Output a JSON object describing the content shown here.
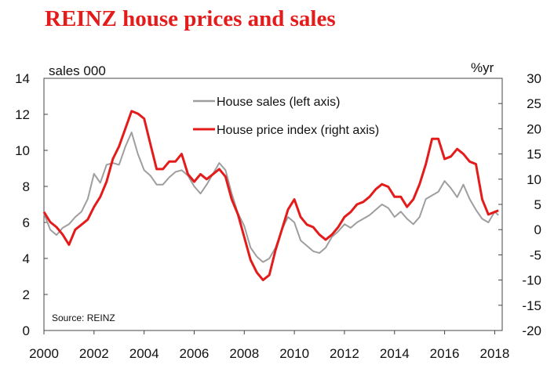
{
  "chart_data": {
    "type": "line",
    "title": "REINZ house prices and sales",
    "left_axis": {
      "unit_label": "sales 000",
      "ylim": [
        0,
        14
      ],
      "ticks": [
        0,
        2,
        4,
        6,
        8,
        10,
        12,
        14
      ]
    },
    "right_axis": {
      "unit_label": "%yr",
      "ylim": [
        -20,
        30
      ],
      "ticks": [
        -20,
        -15,
        -10,
        -5,
        0,
        5,
        10,
        15,
        20,
        25,
        30
      ]
    },
    "x_axis": {
      "xlim": [
        2000,
        2018.3
      ],
      "ticks": [
        2000,
        2002,
        2004,
        2006,
        2008,
        2010,
        2012,
        2014,
        2016,
        2018
      ]
    },
    "legend": {
      "placement": "top-center"
    },
    "source": "Source: REINZ",
    "series": [
      {
        "name": "House sales (left axis)",
        "axis": "left",
        "color": "#9e9e9e",
        "x": [
          2000.0,
          2000.25,
          2000.5,
          2000.75,
          2001.0,
          2001.25,
          2001.5,
          2001.75,
          2002.0,
          2002.25,
          2002.5,
          2002.75,
          2003.0,
          2003.25,
          2003.5,
          2003.75,
          2004.0,
          2004.25,
          2004.5,
          2004.75,
          2005.0,
          2005.25,
          2005.5,
          2005.75,
          2006.0,
          2006.25,
          2006.5,
          2006.75,
          2007.0,
          2007.25,
          2007.5,
          2007.75,
          2008.0,
          2008.25,
          2008.5,
          2008.75,
          2009.0,
          2009.25,
          2009.5,
          2009.75,
          2010.0,
          2010.25,
          2010.5,
          2010.75,
          2011.0,
          2011.25,
          2011.5,
          2011.75,
          2012.0,
          2012.25,
          2012.5,
          2012.75,
          2013.0,
          2013.25,
          2013.5,
          2013.75,
          2014.0,
          2014.25,
          2014.5,
          2014.75,
          2015.0,
          2015.25,
          2015.5,
          2015.75,
          2016.0,
          2016.25,
          2016.5,
          2016.75,
          2017.0,
          2017.25,
          2017.5,
          2017.75,
          2018.0,
          2018.15
        ],
        "values": [
          6.5,
          5.6,
          5.3,
          5.7,
          5.9,
          6.3,
          6.6,
          7.3,
          8.7,
          8.2,
          9.2,
          9.3,
          9.2,
          10.2,
          11.0,
          9.8,
          8.9,
          8.6,
          8.1,
          8.1,
          8.5,
          8.8,
          8.9,
          8.6,
          8.0,
          7.6,
          8.1,
          8.7,
          9.3,
          8.9,
          7.6,
          6.5,
          5.8,
          4.6,
          4.1,
          3.8,
          4.0,
          4.6,
          5.6,
          6.3,
          6.0,
          5.0,
          4.7,
          4.4,
          4.3,
          4.6,
          5.2,
          5.5,
          5.9,
          5.7,
          6.0,
          6.2,
          6.4,
          6.7,
          7.0,
          6.8,
          6.3,
          6.6,
          6.2,
          5.9,
          6.3,
          7.3,
          7.5,
          7.7,
          8.3,
          7.9,
          7.4,
          8.1,
          7.3,
          6.7,
          6.2,
          6.0,
          6.6,
          6.4
        ]
      },
      {
        "name": "House price index (right axis)",
        "axis": "right",
        "color": "#e31b1b",
        "x": [
          2000.0,
          2000.25,
          2000.5,
          2000.75,
          2001.0,
          2001.25,
          2001.5,
          2001.75,
          2002.0,
          2002.25,
          2002.5,
          2002.75,
          2003.0,
          2003.25,
          2003.5,
          2003.75,
          2004.0,
          2004.25,
          2004.5,
          2004.75,
          2005.0,
          2005.25,
          2005.5,
          2005.75,
          2006.0,
          2006.25,
          2006.5,
          2006.75,
          2007.0,
          2007.25,
          2007.5,
          2007.75,
          2008.0,
          2008.25,
          2008.5,
          2008.75,
          2009.0,
          2009.25,
          2009.5,
          2009.75,
          2010.0,
          2010.25,
          2010.5,
          2010.75,
          2011.0,
          2011.25,
          2011.5,
          2011.75,
          2012.0,
          2012.25,
          2012.5,
          2012.75,
          2013.0,
          2013.25,
          2013.5,
          2013.75,
          2014.0,
          2014.25,
          2014.5,
          2014.75,
          2015.0,
          2015.25,
          2015.5,
          2015.75,
          2016.0,
          2016.25,
          2016.5,
          2016.75,
          2017.0,
          2017.25,
          2017.5,
          2017.75,
          2018.0,
          2018.15
        ],
        "values": [
          3.5,
          1.5,
          0.5,
          -1.0,
          -3.0,
          0.0,
          1.0,
          2.0,
          4.5,
          6.5,
          9.5,
          14.0,
          16.5,
          20.0,
          23.5,
          23.0,
          22.0,
          17.0,
          12.0,
          12.0,
          13.5,
          13.5,
          15.0,
          11.0,
          9.5,
          11.0,
          10.0,
          11.0,
          12.0,
          10.5,
          6.0,
          3.0,
          -1.5,
          -6.0,
          -8.5,
          -10.0,
          -9.0,
          -4.0,
          0.0,
          4.0,
          6.0,
          2.5,
          1.0,
          0.5,
          -1.0,
          -2.0,
          -1.0,
          0.5,
          2.5,
          3.5,
          5.0,
          5.5,
          6.5,
          8.0,
          9.0,
          8.5,
          6.5,
          6.5,
          4.5,
          6.0,
          9.0,
          13.0,
          18.0,
          18.0,
          14.0,
          14.5,
          16.0,
          15.0,
          13.5,
          13.0,
          6.0,
          3.0,
          3.5,
          3.8
        ]
      }
    ]
  }
}
